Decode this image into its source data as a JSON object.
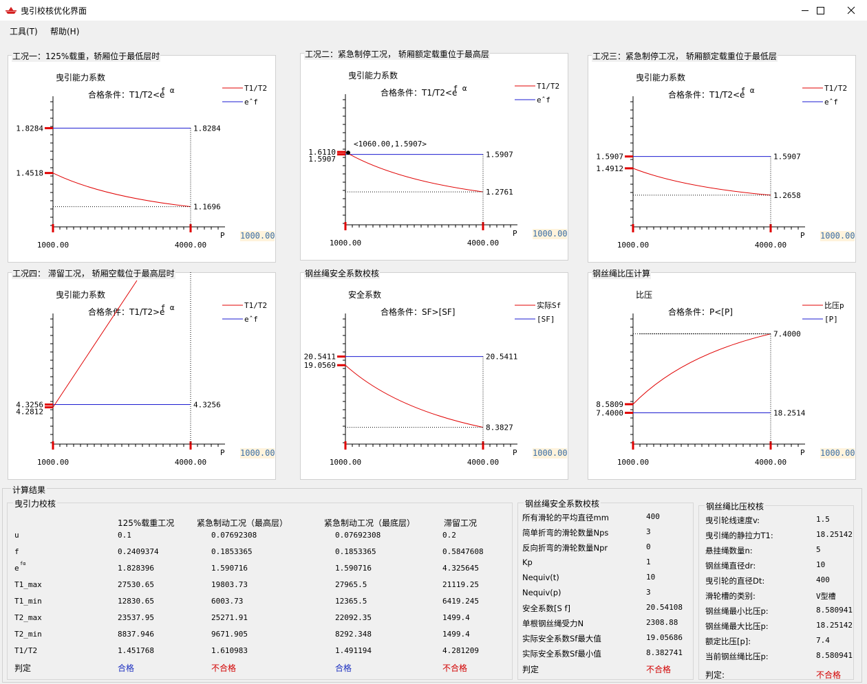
{
  "window": {
    "title": "曳引校核优化界面"
  },
  "menu": {
    "tools": "工具(T)",
    "help": "帮助(H)"
  },
  "colors": {
    "red": "#e00000",
    "blue": "#1a1ad0",
    "input_bg": "#fff3dc",
    "input_text": "#3a6ea5"
  },
  "panels": [
    {
      "caption": "工况一：125%载重，轿厢位于最低层时",
      "ylabel": "曳引能力系数",
      "condition": "合格条件：T1/T2<e",
      "cond_sup": "f α",
      "legend": [
        "T1/T2",
        "e^f"
      ],
      "xlabel": "P",
      "xticks": [
        "1000.00",
        "4000.00"
      ],
      "input": "1000.00",
      "left_labels": [
        "1.8284",
        "1.4518"
      ],
      "right_labels": [
        "1.8284",
        "1.1696"
      ]
    },
    {
      "caption": "工况二：紧急制停工况， 轿厢额定载重位于最高层",
      "ylabel": "曳引能力系数",
      "condition": "合格条件：T1/T2<e",
      "cond_sup": "f α",
      "legend": [
        "T1/T2",
        "e^f"
      ],
      "xlabel": "P",
      "xticks": [
        "1000.00",
        "4000.00"
      ],
      "input": "1000.00",
      "left_labels": [
        "1.6110",
        "1.5907"
      ],
      "right_labels": [
        "1.5907",
        "1.2761"
      ],
      "marker": "<1060.00,1.5907>"
    },
    {
      "caption": "工况三：紧急制停工况， 轿厢额定载重位于最低层",
      "ylabel": "曳引能力系数",
      "condition": "合格条件：T1/T2<e",
      "cond_sup": "f α",
      "legend": [
        "T1/T2",
        "e^f"
      ],
      "xlabel": "P",
      "xticks": [
        "1000.00",
        "4000.00"
      ],
      "input": "1000.00",
      "left_labels": [
        "1.5907",
        "1.4912"
      ],
      "right_labels": [
        "1.5907",
        "1.2658"
      ]
    },
    {
      "caption": "工况四： 滞留工况， 轿厢空载位于最高层时",
      "ylabel": "曳引能力系数",
      "condition": "合格条件：T1/T2>e",
      "cond_sup": "f α",
      "legend": [
        "T1/T2",
        "e^f"
      ],
      "xlabel": "P",
      "xticks": [
        "1000.00",
        "4000.00"
      ],
      "input": "1000.00",
      "left_labels": [
        "4.3256",
        "4.2812"
      ],
      "right_labels": [
        "4.3256"
      ]
    },
    {
      "caption": "钢丝绳安全系数校核",
      "ylabel": "安全系数",
      "condition": "合格条件：SF>[SF]",
      "cond_sup": "",
      "legend": [
        "实际Sf",
        "[SF]"
      ],
      "xlabel": "P",
      "xticks": [
        "1000.00",
        "4000.00"
      ],
      "input": "1000.00",
      "left_labels": [
        "20.5411",
        "19.0569"
      ],
      "right_labels": [
        "20.5411",
        "8.3827"
      ]
    },
    {
      "caption": "钢丝绳比压计算",
      "ylabel": "比压",
      "condition": "合格条件：P<[P]",
      "cond_sup": "",
      "legend": [
        "比压p",
        "[P]"
      ],
      "xlabel": "P",
      "xticks": [
        "1000.00",
        "4000.00"
      ],
      "input": "1000.00",
      "left_labels": [
        "8.5809",
        "7.4000"
      ],
      "right_labels": [
        "18.2514",
        "7.4000"
      ]
    }
  ],
  "chart_data": [
    {
      "type": "line",
      "title": "工况一：125%载重，轿厢位于最低层时",
      "x": [
        1000,
        4000
      ],
      "series": [
        {
          "name": "T1/T2",
          "values": [
            1.4518,
            1.1696
          ]
        },
        {
          "name": "e^f",
          "values": [
            1.8284,
            1.8284
          ]
        }
      ]
    },
    {
      "type": "line",
      "title": "工况二：紧急制停工况， 轿厢额定载重位于最高层",
      "x": [
        1000,
        4000
      ],
      "series": [
        {
          "name": "T1/T2",
          "values": [
            1.611,
            1.2761
          ]
        },
        {
          "name": "e^f",
          "values": [
            1.5907,
            1.5907
          ]
        }
      ]
    },
    {
      "type": "line",
      "title": "工况三：紧急制停工况， 轿厢额定载重位于最低层",
      "x": [
        1000,
        4000
      ],
      "series": [
        {
          "name": "T1/T2",
          "values": [
            1.4912,
            1.2658
          ]
        },
        {
          "name": "e^f",
          "values": [
            1.5907,
            1.5907
          ]
        }
      ]
    },
    {
      "type": "line",
      "title": "工况四： 滞留工况， 轿厢空载位于最高层时",
      "x": [
        1000,
        4000
      ],
      "series": [
        {
          "name": "T1/T2",
          "values": [
            4.2812,
            null
          ]
        },
        {
          "name": "e^f",
          "values": [
            4.3256,
            4.3256
          ]
        }
      ]
    },
    {
      "type": "line",
      "title": "钢丝绳安全系数校核",
      "x": [
        1000,
        4000
      ],
      "series": [
        {
          "name": "实际Sf",
          "values": [
            19.0569,
            8.3827
          ]
        },
        {
          "name": "[SF]",
          "values": [
            20.5411,
            20.5411
          ]
        }
      ]
    },
    {
      "type": "line",
      "title": "钢丝绳比压计算",
      "x": [
        1000,
        4000
      ],
      "series": [
        {
          "name": "比压p",
          "values": [
            8.5809,
            18.2514
          ]
        },
        {
          "name": "[P]",
          "values": [
            7.4,
            7.4
          ]
        }
      ]
    }
  ],
  "results": {
    "caption": "计算结果",
    "traction": {
      "caption": "曳引力校核",
      "columns": [
        "125%载重工况",
        "紧急制动工况（最高层）",
        "紧急制动工况（最底层）",
        "滞留工况"
      ],
      "rows": [
        {
          "label": "u",
          "values": [
            "0.1",
            "0.07692308",
            "0.07692308",
            "0.2"
          ]
        },
        {
          "label": "f",
          "values": [
            "0.2409374",
            "0.1853365",
            "0.1853365",
            "0.5847608"
          ]
        },
        {
          "label": "e",
          "label_sup": "fα",
          "values": [
            "1.828396",
            "1.590716",
            "1.590716",
            "4.325645"
          ]
        },
        {
          "label": "T1_max",
          "values": [
            "27530.65",
            "19803.73",
            "27965.5",
            "21119.25"
          ]
        },
        {
          "label": "T1_min",
          "values": [
            "12830.65",
            "6003.73",
            "12365.5",
            "6419.245"
          ]
        },
        {
          "label": "T2_max",
          "values": [
            "23537.95",
            "25271.91",
            "22092.35",
            "1499.4"
          ]
        },
        {
          "label": "T2_min",
          "values": [
            "8837.946",
            "9671.905",
            "8292.348",
            "1499.4"
          ]
        },
        {
          "label": "T1/T2",
          "values": [
            "1.451768",
            "1.610983",
            "1.491194",
            "4.281209"
          ]
        }
      ],
      "verdict_label": "判定",
      "verdicts": [
        "合格",
        "不合格",
        "合格",
        "不合格"
      ]
    },
    "safety": {
      "caption": "钢丝绳安全系数校核",
      "rows": [
        {
          "label": "所有滑轮的平均直径mm",
          "value": "400"
        },
        {
          "label": "简单折弯的滑轮数量Nps",
          "value": "3"
        },
        {
          "label": "反向折弯的滑轮数量Npr",
          "value": "0"
        },
        {
          "label": "Kp",
          "value": "1"
        },
        {
          "label": "Nequiv(t)",
          "value": "10"
        },
        {
          "label": "Nequiv(p)",
          "value": "3"
        },
        {
          "label": "安全系数[S f]",
          "value": "20.54108"
        },
        {
          "label": "单根钢丝绳受力N",
          "value": "2308.88"
        },
        {
          "label": "实际安全系数Sf最大值",
          "value": "19.05686"
        },
        {
          "label": "实际安全系数Sf最小值",
          "value": "8.382741"
        }
      ],
      "verdict_label": "判定",
      "verdict": "不合格"
    },
    "pressure": {
      "caption": "钢丝绳比压校核",
      "rows": [
        {
          "label": "曳引轮线速度v:",
          "value": "1.5"
        },
        {
          "label": "曳引绳的静拉力T1:",
          "value": "18.25142"
        },
        {
          "label": "悬挂绳数量n:",
          "value": "5"
        },
        {
          "label": "钢丝绳直径dr:",
          "value": "10"
        },
        {
          "label": "曳引轮的直径Dt:",
          "value": "400"
        },
        {
          "label": "滑轮槽的类别:",
          "value": "V型槽"
        },
        {
          "label": "钢丝绳最小比压p:",
          "value": "8.580941"
        },
        {
          "label": "钢丝绳最大比压p:",
          "value": "18.25142"
        },
        {
          "label": "额定比压[p]:",
          "value": "7.4"
        },
        {
          "label": "当前钢丝绳比压p:",
          "value": "8.580941"
        }
      ],
      "verdict_label": "判定:",
      "verdict": "不合格"
    }
  }
}
